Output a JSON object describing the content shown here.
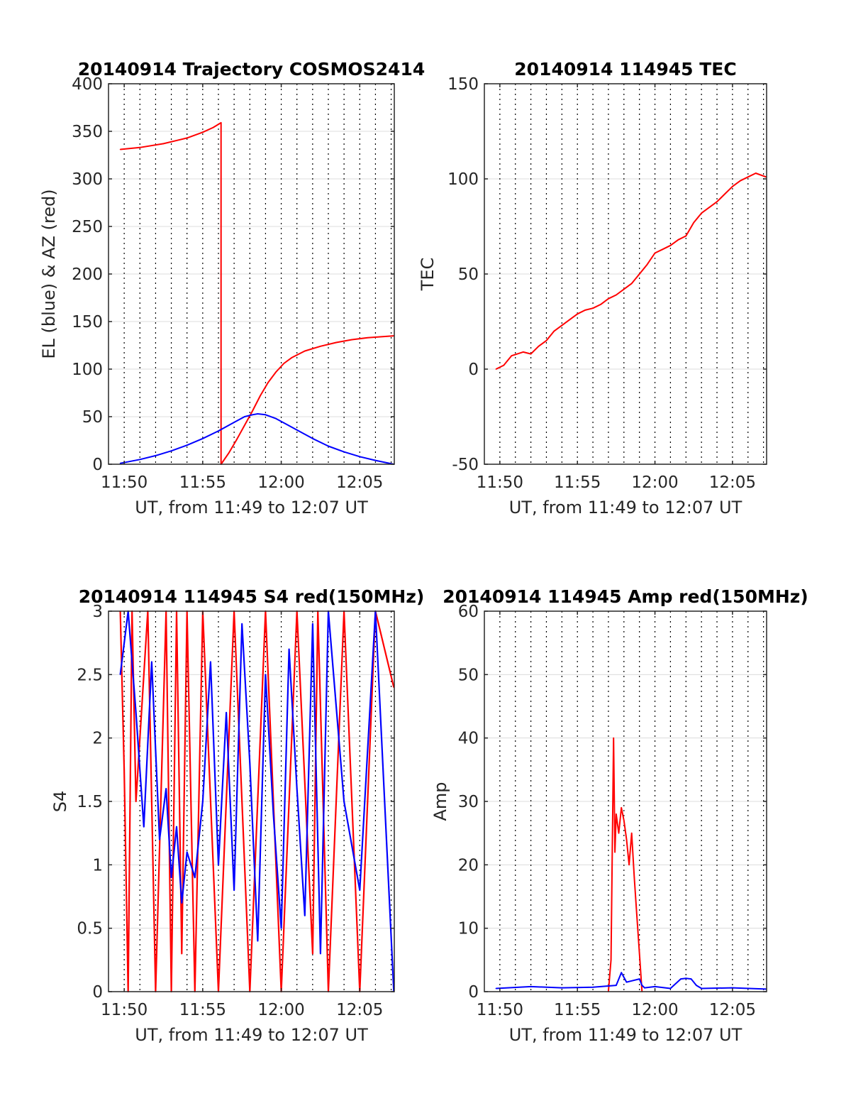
{
  "chart_data": [
    {
      "id": "traj",
      "type": "line",
      "title": "20140914 Trajectory COSMOS2414",
      "xlabel": "UT, from 11:49 to 12:07 UT",
      "ylabel": "EL (blue) & AZ (red)",
      "xlim_min": [
        709,
        727.2
      ],
      "ylim": [
        0,
        400
      ],
      "yticks": [
        0,
        50,
        100,
        150,
        200,
        250,
        300,
        350,
        400
      ],
      "xticks": [
        {
          "min": 710,
          "label": "11:50"
        },
        {
          "min": 715,
          "label": "11:55"
        },
        {
          "min": 720,
          "label": "12:00"
        },
        {
          "min": 725,
          "label": "12:05"
        }
      ],
      "grid": true,
      "series": [
        {
          "color": "#ff0000",
          "x": [
            "11:49:45",
            "11:51:00",
            "11:52:30",
            "11:54:00",
            "11:55:00",
            "11:55:40",
            "11:56:10",
            "11:56:10",
            "11:56:40",
            "11:57:10",
            "11:57:40",
            "11:58:10",
            "11:58:40",
            "11:59:10",
            "11:59:40",
            "12:00:10",
            "12:00:40",
            "12:01:30",
            "12:02:30",
            "12:03:30",
            "12:04:30",
            "12:05:30",
            "12:07:10"
          ],
          "values": [
            331,
            333,
            337,
            343,
            349,
            354,
            359,
            0,
            12,
            26,
            41,
            56,
            72,
            86,
            97,
            106,
            112,
            119,
            124,
            128,
            131,
            133,
            135
          ]
        },
        {
          "color": "#0000ff",
          "x": [
            "11:49:45",
            "11:51:00",
            "11:52:00",
            "11:53:00",
            "11:54:00",
            "11:55:00",
            "11:56:00",
            "11:57:00",
            "11:57:40",
            "11:58:10",
            "11:58:30",
            "11:59:00",
            "11:59:40",
            "12:00:20",
            "12:01:00",
            "12:02:00",
            "12:03:00",
            "12:04:00",
            "12:05:00",
            "12:06:00",
            "12:07:10"
          ],
          "values": [
            1,
            5,
            9,
            14,
            20,
            27,
            35,
            44,
            50,
            52,
            53,
            52,
            48,
            42,
            36,
            27,
            19,
            13,
            8,
            4,
            0
          ]
        }
      ]
    },
    {
      "id": "tec",
      "type": "line",
      "title": "20140914 114945 TEC",
      "xlabel": "UT, from 11:49 to 12:07 UT",
      "ylabel": "TEC",
      "xlim_min": [
        709,
        727.2
      ],
      "ylim": [
        -50,
        150
      ],
      "yticks": [
        -50,
        0,
        50,
        100,
        150
      ],
      "xticks": [
        {
          "min": 710,
          "label": "11:50"
        },
        {
          "min": 715,
          "label": "11:55"
        },
        {
          "min": 720,
          "label": "12:00"
        },
        {
          "min": 725,
          "label": "12:05"
        }
      ],
      "grid": true,
      "series": [
        {
          "color": "#ff0000",
          "x": [
            "11:49:45",
            "11:50:15",
            "11:50:45",
            "11:51:30",
            "11:52:00",
            "11:52:30",
            "11:53:00",
            "11:53:30",
            "11:54:00",
            "11:54:30",
            "11:55:00",
            "11:55:30",
            "11:56:00",
            "11:56:30",
            "11:57:00",
            "11:57:30",
            "11:58:00",
            "11:58:30",
            "11:59:00",
            "11:59:30",
            "12:00:00",
            "12:00:30",
            "12:01:00",
            "12:01:30",
            "12:02:00",
            "12:02:30",
            "12:03:00",
            "12:03:30",
            "12:04:00",
            "12:04:30",
            "12:05:00",
            "12:05:30",
            "12:06:00",
            "12:06:30",
            "12:07:10"
          ],
          "values": [
            0,
            2,
            7,
            9,
            8,
            12,
            15,
            20,
            23,
            26,
            29,
            31,
            32,
            34,
            37,
            39,
            42,
            45,
            50,
            55,
            61,
            63,
            65,
            68,
            70,
            77,
            82,
            85,
            88,
            92,
            96,
            99,
            101,
            103,
            101
          ]
        }
      ]
    },
    {
      "id": "s4",
      "type": "line",
      "title": "20140914 114945 S4 red(150MHz)",
      "xlabel": "UT, from 11:49 to 12:07 UT",
      "ylabel": "S4",
      "xlim_min": [
        709,
        727.2
      ],
      "ylim": [
        0,
        3
      ],
      "yticks": [
        0,
        0.5,
        1,
        1.5,
        2,
        2.5,
        3
      ],
      "xticks": [
        {
          "min": 710,
          "label": "11:50"
        },
        {
          "min": 715,
          "label": "11:55"
        },
        {
          "min": 720,
          "label": "12:00"
        },
        {
          "min": 725,
          "label": "12:05"
        }
      ],
      "grid": true,
      "series": [
        {
          "color": "#ff0000",
          "x": [
            "11:49:45",
            "11:50:00",
            "11:50:15",
            "11:50:30",
            "11:50:45",
            "11:51:30",
            "11:52:00",
            "11:52:40",
            "11:53:00",
            "11:53:20",
            "11:53:40",
            "11:54:00",
            "11:54:30",
            "11:55:00",
            "11:56:00",
            "11:57:00",
            "11:58:00",
            "11:59:00",
            "12:00:00",
            "12:01:00",
            "12:02:00",
            "12:02:20",
            "12:03:00",
            "12:04:00",
            "12:05:00",
            "12:06:00",
            "12:07:10"
          ],
          "values": [
            3.0,
            1.75,
            0.0,
            3.0,
            1.5,
            3.0,
            0.0,
            3.0,
            0.0,
            3.0,
            0.3,
            3.0,
            0.0,
            3.0,
            0.0,
            3.0,
            0.0,
            3.0,
            0.0,
            3.0,
            0.3,
            3.0,
            0.0,
            3.0,
            0.0,
            3.0,
            2.4
          ]
        },
        {
          "color": "#0000ff",
          "x": [
            "11:49:45",
            "11:50:15",
            "11:50:45",
            "11:51:15",
            "11:51:45",
            "11:52:15",
            "11:52:40",
            "11:53:00",
            "11:53:20",
            "11:53:40",
            "11:54:00",
            "11:54:30",
            "11:55:00",
            "11:55:30",
            "11:56:00",
            "11:56:30",
            "11:57:00",
            "11:57:30",
            "11:58:00",
            "11:58:30",
            "11:59:00",
            "11:59:30",
            "12:00:00",
            "12:00:30",
            "12:01:00",
            "12:01:30",
            "12:02:00",
            "12:02:30",
            "12:03:00",
            "12:04:00",
            "12:05:00",
            "12:06:00",
            "12:07:10"
          ],
          "values": [
            2.5,
            3.0,
            2.2,
            1.3,
            2.6,
            1.2,
            1.6,
            0.9,
            1.3,
            0.7,
            1.1,
            0.9,
            1.5,
            2.6,
            1.0,
            2.2,
            0.8,
            2.9,
            1.8,
            0.4,
            2.5,
            1.4,
            0.5,
            2.7,
            1.6,
            0.6,
            2.9,
            0.3,
            3.0,
            1.5,
            0.8,
            3.0,
            0.0
          ]
        }
      ]
    },
    {
      "id": "amp",
      "type": "line",
      "title": "20140914 114945 Amp red(150MHz)",
      "xlabel": "UT, from 11:49 to 12:07 UT",
      "ylabel": "Amp",
      "xlim_min": [
        709,
        727.2
      ],
      "ylim": [
        0,
        60
      ],
      "yticks": [
        0,
        10,
        20,
        30,
        40,
        50,
        60
      ],
      "xticks": [
        {
          "min": 710,
          "label": "11:50"
        },
        {
          "min": 715,
          "label": "11:55"
        },
        {
          "min": 720,
          "label": "12:00"
        },
        {
          "min": 725,
          "label": "12:05"
        }
      ],
      "grid": true,
      "series": [
        {
          "color": "#ff0000",
          "x": [
            "11:57:00",
            "11:57:10",
            "11:57:20",
            "11:57:25",
            "11:57:30",
            "11:57:40",
            "11:57:50",
            "11:58:00",
            "11:58:10",
            "11:58:20",
            "11:58:30",
            "11:58:40",
            "11:58:50",
            "11:59:00",
            "11:59:10"
          ],
          "values": [
            0,
            5,
            40,
            22,
            28,
            25,
            29,
            27,
            24,
            20,
            25,
            18,
            12,
            6,
            0
          ]
        },
        {
          "color": "#0000ff",
          "x": [
            "11:49:45",
            "11:52:00",
            "11:54:00",
            "11:56:00",
            "11:57:30",
            "11:57:50",
            "11:58:10",
            "11:59:00",
            "11:59:10",
            "11:59:20",
            "12:00:00",
            "12:01:00",
            "12:01:40",
            "12:02:00",
            "12:02:20",
            "12:02:40",
            "12:03:00",
            "12:05:00",
            "12:07:10"
          ],
          "values": [
            0.5,
            0.8,
            0.6,
            0.7,
            1.0,
            3.0,
            1.5,
            2.0,
            1.0,
            0.6,
            0.8,
            0.5,
            2.0,
            2.1,
            2.0,
            1.0,
            0.5,
            0.6,
            0.4
          ]
        }
      ]
    }
  ]
}
